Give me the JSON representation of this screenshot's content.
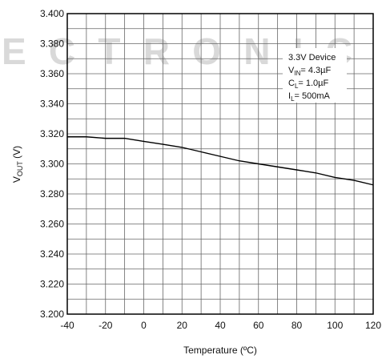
{
  "watermark": {
    "text": "ECTRONIC"
  },
  "chart_data": {
    "type": "line",
    "title": "",
    "xlabel": "Temperature (ºC)",
    "ylabel_main": "V",
    "ylabel_sub": "OUT",
    "ylabel_unit": " (V)",
    "xlim": [
      -40,
      120
    ],
    "ylim": [
      3.2,
      3.4
    ],
    "x_ticks": [
      -40,
      -20,
      0,
      20,
      40,
      60,
      80,
      100,
      120
    ],
    "y_ticks": [
      "3.200",
      "3.220",
      "3.240",
      "3.260",
      "3.280",
      "3.300",
      "3.320",
      "3.340",
      "3.360",
      "3.380",
      "3.400"
    ],
    "x_minor_step": 10,
    "y_minor_step": 0.01,
    "grid": true,
    "legend_position": "top-right",
    "series": [
      {
        "x": [
          -40,
          -30,
          -20,
          -10,
          0,
          10,
          20,
          30,
          40,
          50,
          60,
          70,
          80,
          90,
          100,
          110,
          120
        ],
        "y": [
          3.318,
          3.318,
          3.317,
          3.317,
          3.315,
          3.313,
          3.311,
          3.308,
          3.305,
          3.302,
          3.3,
          3.298,
          3.296,
          3.294,
          3.291,
          3.289,
          3.286
        ]
      }
    ],
    "annotation": [
      {
        "main": "3.3V Device",
        "sub": "",
        "rest": ""
      },
      {
        "main": "V",
        "sub": "IN",
        "rest": "= 4.3µF"
      },
      {
        "main": "C",
        "sub": "L",
        "rest": "= 1.0µF"
      },
      {
        "main": "I",
        "sub": "L",
        "rest": "= 500mA"
      }
    ]
  }
}
